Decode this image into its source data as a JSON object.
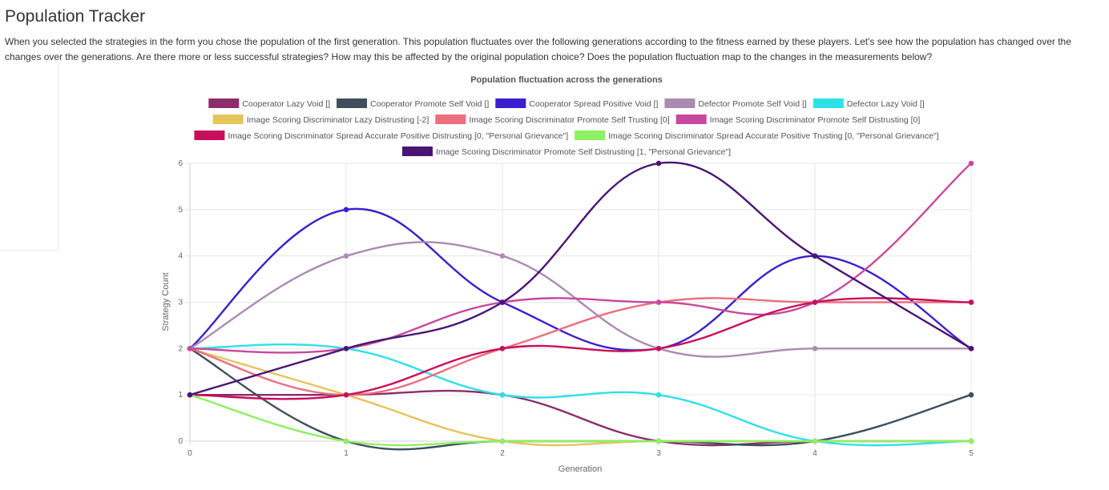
{
  "page": {
    "title": "Population Tracker",
    "intro": "When you selected the strategies in the form you chose the population of the first generation. This population fluctuates over the following generations according to the fitness earned by these players. Let's see how the population has changed over the changes over the generations. Are there more or less successful strategies? How may this be affected by the original population choice? Does the population fluctuation map to the changes in the measurements below?"
  },
  "chart_data": {
    "type": "line",
    "title": "Population fluctuation across the generations",
    "xlabel": "Generation",
    "ylabel": "Strategy Count",
    "x": [
      0,
      1,
      2,
      3,
      4,
      5
    ],
    "ylim": [
      0,
      6
    ],
    "yticks": [
      0,
      1,
      2,
      3,
      4,
      5,
      6
    ],
    "grid": true,
    "legend_position": "top",
    "smooth": true,
    "series": [
      {
        "name": "Cooperator Lazy Void []",
        "color": "#8b2d6b",
        "values": [
          1,
          1,
          1,
          0,
          0,
          0
        ]
      },
      {
        "name": "Cooperator Promote Self Void []",
        "color": "#3f4f5d",
        "values": [
          2,
          0,
          0,
          0,
          0,
          1
        ]
      },
      {
        "name": "Cooperator Spread Positive Void []",
        "color": "#3a1fd0",
        "values": [
          2,
          5,
          3,
          2,
          4,
          2
        ]
      },
      {
        "name": "Defector Promote Self Void []",
        "color": "#ab8bb2",
        "values": [
          2,
          4,
          4,
          2,
          2,
          2
        ]
      },
      {
        "name": "Defector Lazy Void []",
        "color": "#2ee0e8",
        "values": [
          2,
          2,
          1,
          1,
          0,
          0
        ]
      },
      {
        "name": "Image Scoring Discriminator Lazy Distrusting [-2]",
        "color": "#e3c55c",
        "values": [
          2,
          1,
          0,
          0,
          0,
          0
        ]
      },
      {
        "name": "Image Scoring Discriminator Promote Self Trusting [0]",
        "color": "#ec6e7f",
        "values": [
          2,
          1,
          2,
          3,
          3,
          3
        ]
      },
      {
        "name": "Image Scoring Discriminator Promote Self Distrusting [0]",
        "color": "#c8489d",
        "values": [
          2,
          2,
          3,
          3,
          3,
          6
        ]
      },
      {
        "name": "Image Scoring Discriminator Spread Accurate Positive Distrusting [0, \"Personal Grievance\"]",
        "color": "#c8105a",
        "values": [
          1,
          1,
          2,
          2,
          3,
          3
        ]
      },
      {
        "name": "Image Scoring Discriminator Spread Accurate Positive Trusting [0, \"Personal Grievance\"]",
        "color": "#8ef062",
        "values": [
          1,
          0,
          0,
          0,
          0,
          0
        ]
      },
      {
        "name": "Image Scoring Discriminator Promote Self Distrusting [1, \"Personal Grievance\"]",
        "color": "#4a1575",
        "values": [
          1,
          2,
          3,
          6,
          4,
          2
        ]
      }
    ]
  }
}
